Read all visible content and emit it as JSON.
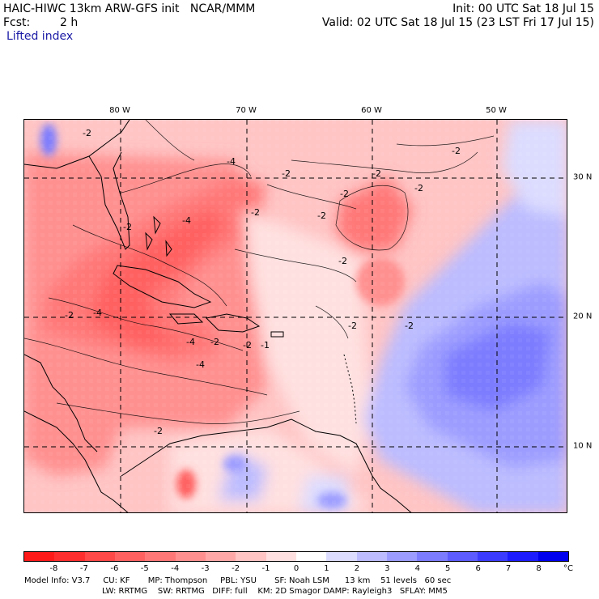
{
  "header": {
    "model_title": "HAIC-HIWC 13km ARW-GFS init   NCAR/MMM",
    "init": "Init: 00 UTC Sat 18 Jul 15",
    "fcst_label": "Fcst:",
    "fcst_value": "2 h",
    "valid": "Valid: 02 UTC Sat 18 Jul 15 (23 LST Fri 17 Jul 15)",
    "field": "Lifted index"
  },
  "map": {
    "lon_labels": [
      "80 W",
      "70 W",
      "60 W",
      "50 W"
    ],
    "lat_labels": [
      "30 N",
      "20 N",
      "10 N"
    ],
    "contour_labels": [
      "-2",
      "-2",
      "-2",
      "-2",
      "-2",
      "-2",
      "-2",
      "-2",
      "-2",
      "-2",
      "-2",
      "-2",
      "-2",
      "-4",
      "-4",
      "-4",
      "-4",
      "-4",
      "-2",
      "-2",
      "-1",
      "-2"
    ]
  },
  "colorbar": {
    "labels": [
      "-8",
      "-7",
      "-6",
      "-5",
      "-4",
      "-3",
      "-2",
      "-1",
      "0",
      "1",
      "2",
      "3",
      "4",
      "5",
      "6",
      "7",
      "8"
    ],
    "unit": "°C",
    "colors": [
      "#ff1a1a",
      "#ff2e2e",
      "#ff4848",
      "#ff6161",
      "#ff7878",
      "#ff9090",
      "#ffa8a8",
      "#ffc4c4",
      "#ffe0e0",
      "#ffffff",
      "#dcdcff",
      "#bcbcff",
      "#9c9cff",
      "#7c7cff",
      "#5c5cff",
      "#3c3cff",
      "#1c1cff",
      "#0000ee"
    ]
  },
  "footer": {
    "line1": "Model Info: V3.7     CU: KF       MP: Thompson     PBL: YSU       SF: Noah LSM      13 km    51 levels   60 sec",
    "line2": "LW: RRTMG    SW: RRTMG   DIFF: full    KM: 2D Smagor DAMP: Rayleigh3   SFLAY: MM5"
  }
}
